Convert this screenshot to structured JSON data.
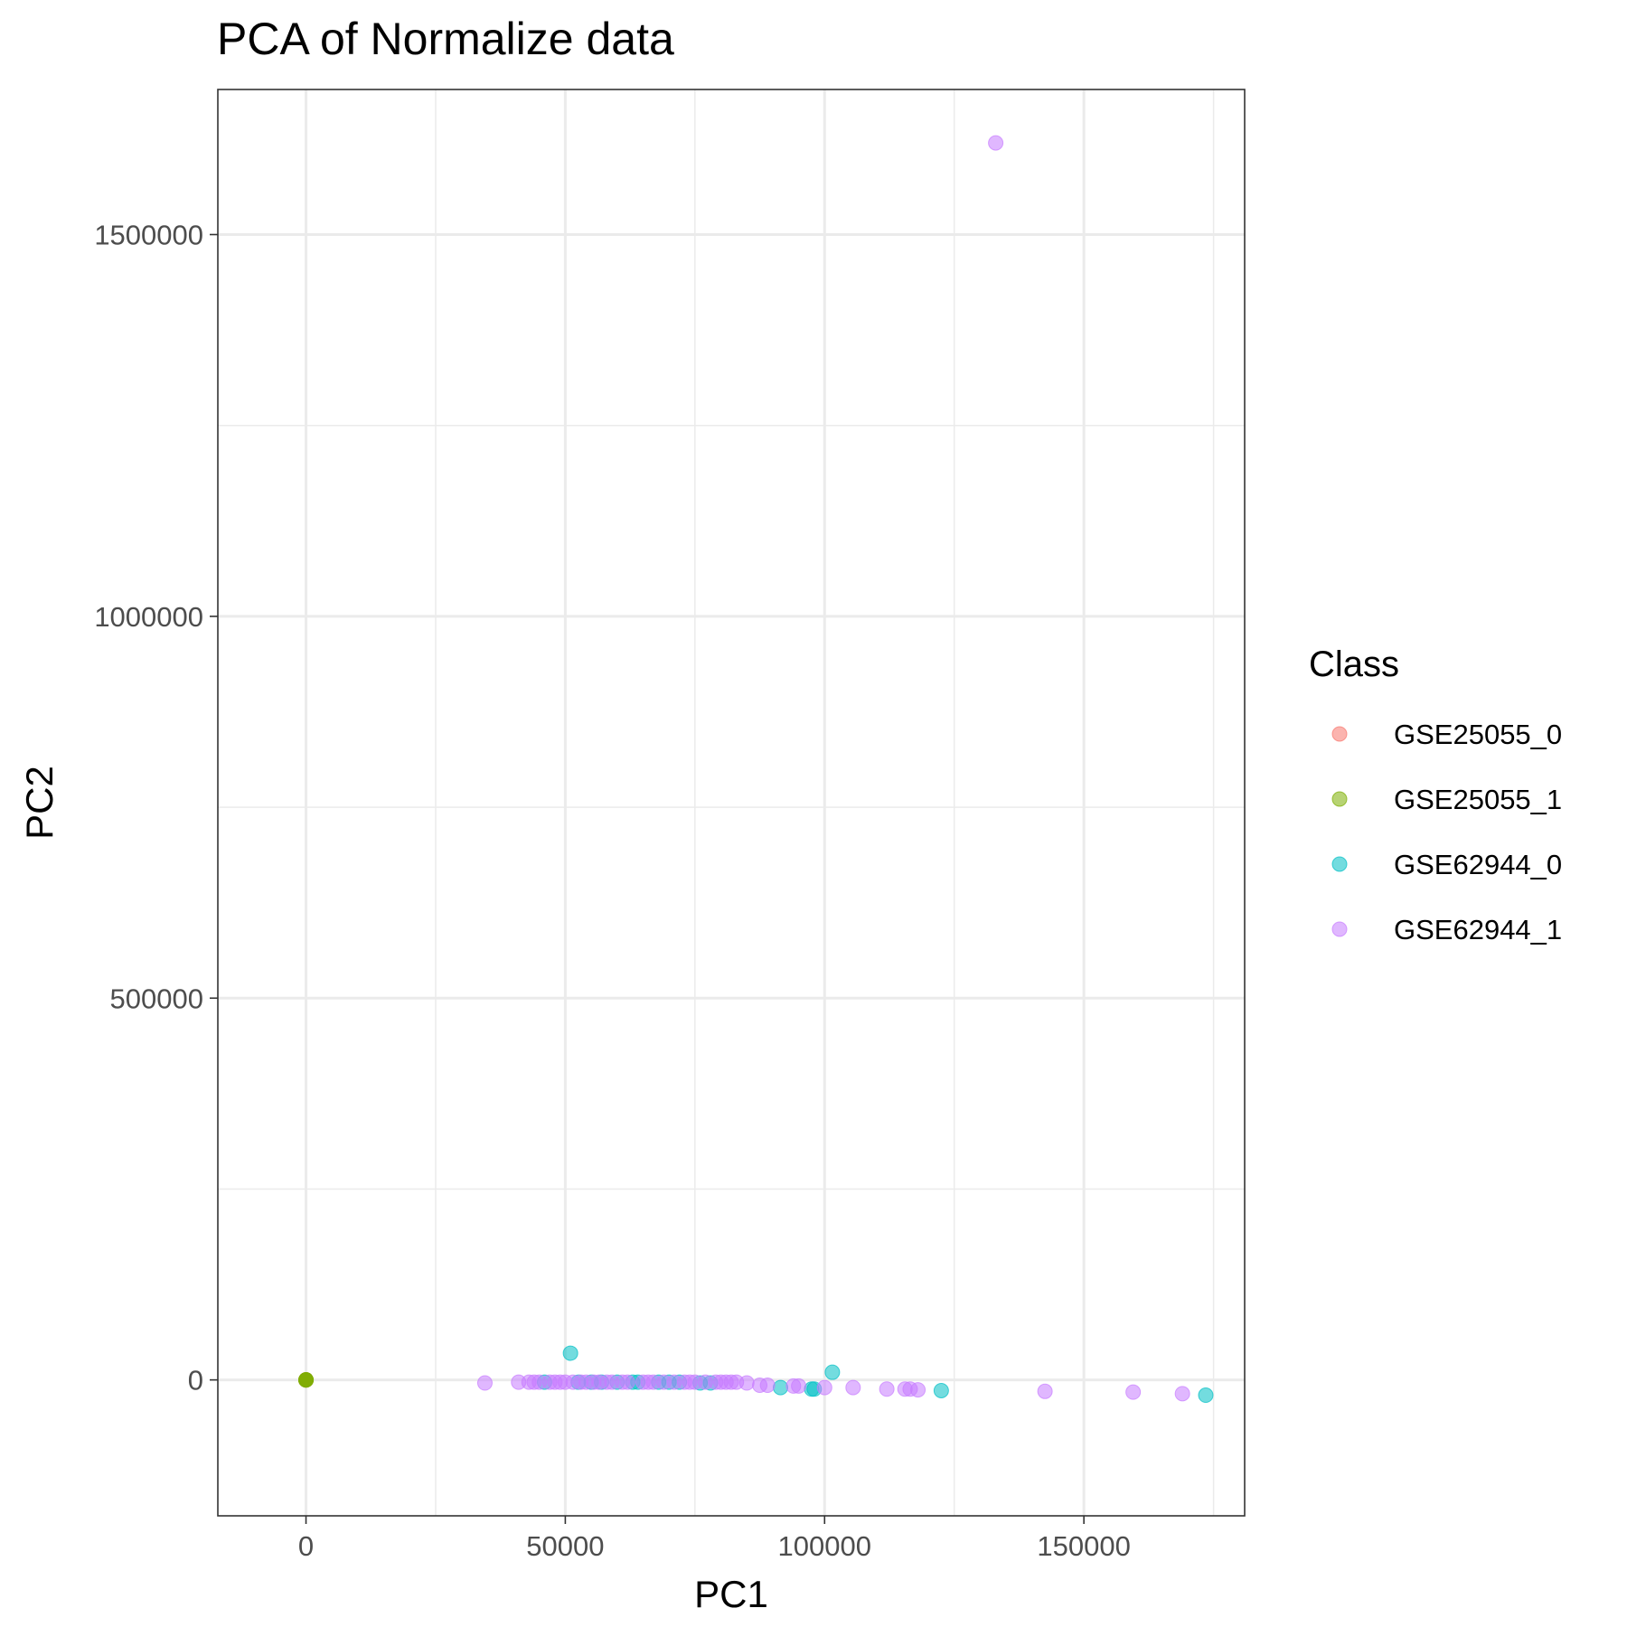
{
  "chart_data": {
    "type": "scatter",
    "title": "PCA of Normalize data",
    "xlabel": "PC1",
    "ylabel": "PC2",
    "xlim": [
      -17000,
      181000
    ],
    "ylim": [
      -178000,
      1690000
    ],
    "x_ticks": [
      0,
      50000,
      100000,
      150000
    ],
    "x_tick_labels": [
      "0",
      "50000",
      "100000",
      "150000"
    ],
    "y_ticks": [
      0,
      500000,
      1000000,
      1500000
    ],
    "y_tick_labels": [
      "0",
      "500000",
      "1000000",
      "1500000"
    ],
    "grid": true,
    "legend": {
      "title": "Class",
      "position": "right"
    },
    "series": [
      {
        "name": "GSE25055_0",
        "color": "#F8766D",
        "points": [
          [
            0,
            0
          ],
          [
            0,
            0
          ],
          [
            0,
            0
          ]
        ]
      },
      {
        "name": "GSE25055_1",
        "color": "#7CAE00",
        "points": [
          [
            0,
            0
          ],
          [
            0,
            0
          ],
          [
            0,
            0
          ],
          [
            0,
            0
          ]
        ]
      },
      {
        "name": "GSE62944_0",
        "color": "#00BFC4",
        "points": [
          [
            46000,
            -3000
          ],
          [
            51000,
            35000
          ],
          [
            52500,
            -3000
          ],
          [
            55000,
            -3000
          ],
          [
            57000,
            -3000
          ],
          [
            60000,
            -3000
          ],
          [
            63000,
            -3000
          ],
          [
            64000,
            -3000
          ],
          [
            68000,
            -3000
          ],
          [
            70000,
            -3000
          ],
          [
            72000,
            -3000
          ],
          [
            76000,
            -4000
          ],
          [
            78000,
            -4000
          ],
          [
            91500,
            -10000
          ],
          [
            97500,
            -12000
          ],
          [
            98000,
            -12000
          ],
          [
            101500,
            10000
          ],
          [
            122500,
            -14000
          ],
          [
            173500,
            -20000
          ]
        ]
      },
      {
        "name": "GSE62944_1",
        "color": "#C77CFF",
        "points": [
          [
            34500,
            -4000
          ],
          [
            41000,
            -3000
          ],
          [
            43000,
            -3000
          ],
          [
            44000,
            -3000
          ],
          [
            45000,
            -3000
          ],
          [
            47000,
            -3000
          ],
          [
            48000,
            -3000
          ],
          [
            49000,
            -3000
          ],
          [
            50000,
            -3000
          ],
          [
            51500,
            -3000
          ],
          [
            53000,
            -3000
          ],
          [
            54000,
            -3000
          ],
          [
            55500,
            -3000
          ],
          [
            56500,
            -3000
          ],
          [
            58000,
            -3000
          ],
          [
            59000,
            -3000
          ],
          [
            61000,
            -3000
          ],
          [
            62000,
            -3000
          ],
          [
            65000,
            -3000
          ],
          [
            66000,
            -3000
          ],
          [
            67000,
            -3000
          ],
          [
            69000,
            -3000
          ],
          [
            71000,
            -3000
          ],
          [
            73000,
            -3000
          ],
          [
            74000,
            -3000
          ],
          [
            75000,
            -3000
          ],
          [
            77000,
            -3000
          ],
          [
            79000,
            -3000
          ],
          [
            80000,
            -3000
          ],
          [
            81000,
            -3000
          ],
          [
            82000,
            -3000
          ],
          [
            83000,
            -3000
          ],
          [
            85000,
            -4000
          ],
          [
            87500,
            -7000
          ],
          [
            89000,
            -7000
          ],
          [
            94000,
            -8000
          ],
          [
            95000,
            -8000
          ],
          [
            100000,
            -10000
          ],
          [
            105500,
            -10000
          ],
          [
            112000,
            -12000
          ],
          [
            115500,
            -12000
          ],
          [
            116500,
            -12000
          ],
          [
            118000,
            -13000
          ],
          [
            133000,
            1620000
          ],
          [
            142500,
            -15000
          ],
          [
            159500,
            -16000
          ],
          [
            169000,
            -18000
          ]
        ]
      }
    ]
  }
}
